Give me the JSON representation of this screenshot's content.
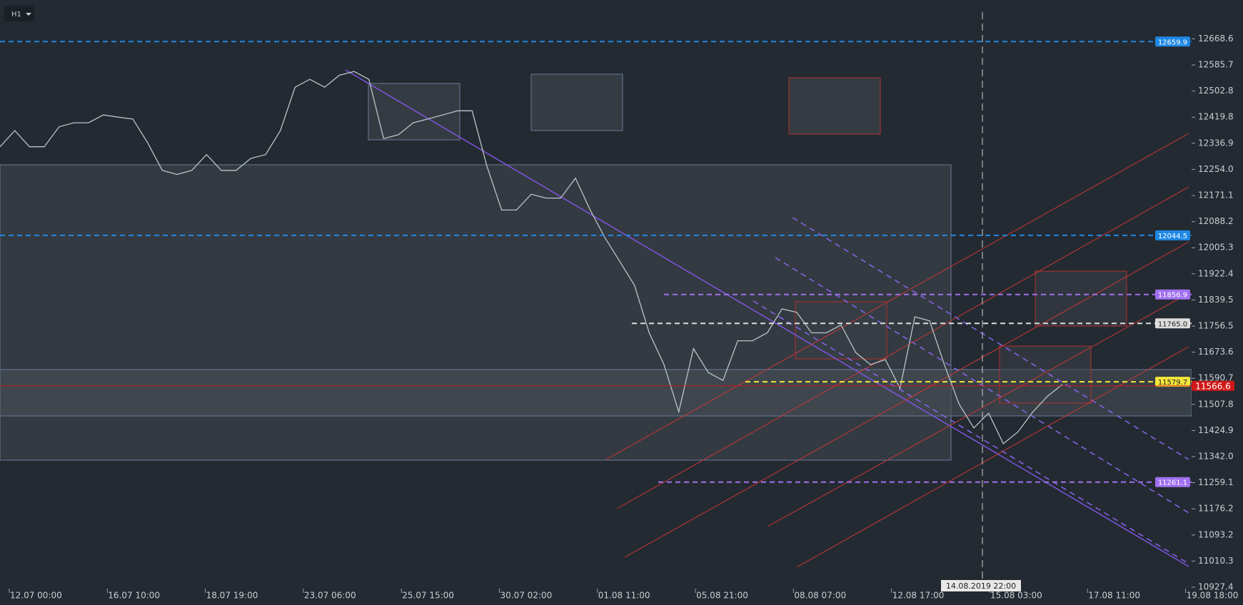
{
  "chart_data": {
    "type": "line",
    "timeframe": "H1",
    "crosshair_label": "14.08.2019 22:00",
    "color": "#b9c6c8",
    "values": [
      12326,
      12377,
      12326,
      12326,
      12389,
      12402,
      12402,
      12427,
      12420,
      12414,
      12339,
      12251,
      12238,
      12251,
      12301,
      12251,
      12251,
      12289,
      12301,
      12377,
      12515,
      12540,
      12515,
      12553,
      12565,
      12540,
      12352,
      12364,
      12402,
      12414,
      12427,
      12440,
      12440,
      12264,
      12125,
      12125,
      12175,
      12163,
      12163,
      12226,
      12125,
      12037,
      11962,
      11886,
      11735,
      11634,
      11484,
      11685,
      11609,
      11584,
      11710,
      11710,
      11735,
      11811,
      11800,
      11735,
      11735,
      11760,
      11672,
      11634,
      11650,
      11559,
      11786,
      11773,
      11634,
      11509,
      11433,
      11480,
      11383,
      11421,
      11484,
      11534,
      11571
    ],
    "ylim": [
      10927.4,
      12791.9
    ],
    "yticks": [
      12668.6,
      12585.7,
      12502.8,
      12419.8,
      12336.9,
      {
        "value": 12254,
        "label": "12254.0"
      },
      12171.1,
      12088.2,
      12005.3,
      11922.4,
      11839.5,
      11756.5,
      11673.6,
      11590.7,
      11507.8,
      11424.9,
      {
        "value": 11342,
        "label": "11342.0"
      },
      11259.1,
      11176.2,
      11093.2,
      11010.3,
      10927.4
    ],
    "x_labels": [
      "12.07 00:00",
      "16.07 10:00",
      "18.07 19:00",
      "23.07 06:00",
      "25.07 15:00",
      "30.07 02:00",
      "01.08 11:00",
      "05.08 21:00",
      "08.08 07:00",
      "12.08 17:00",
      "15.08 03:00",
      "17.08 11:00",
      "19.08 18:00"
    ],
    "levels": [
      {
        "value": 12659.9,
        "color": "#1e88e5"
      },
      {
        "value": 12044.5,
        "color": "#1e88e5"
      },
      {
        "value": 11856.9,
        "color": "#a070f0"
      },
      {
        "value": 11765,
        "label": "11765.0",
        "color": "#dddddd"
      },
      {
        "value": 11579.7,
        "color": "#f5e63a"
      },
      {
        "value": 11261.1,
        "color": "#a070f0"
      },
      {
        "value": 11566.6,
        "color": "#d01818"
      }
    ]
  }
}
